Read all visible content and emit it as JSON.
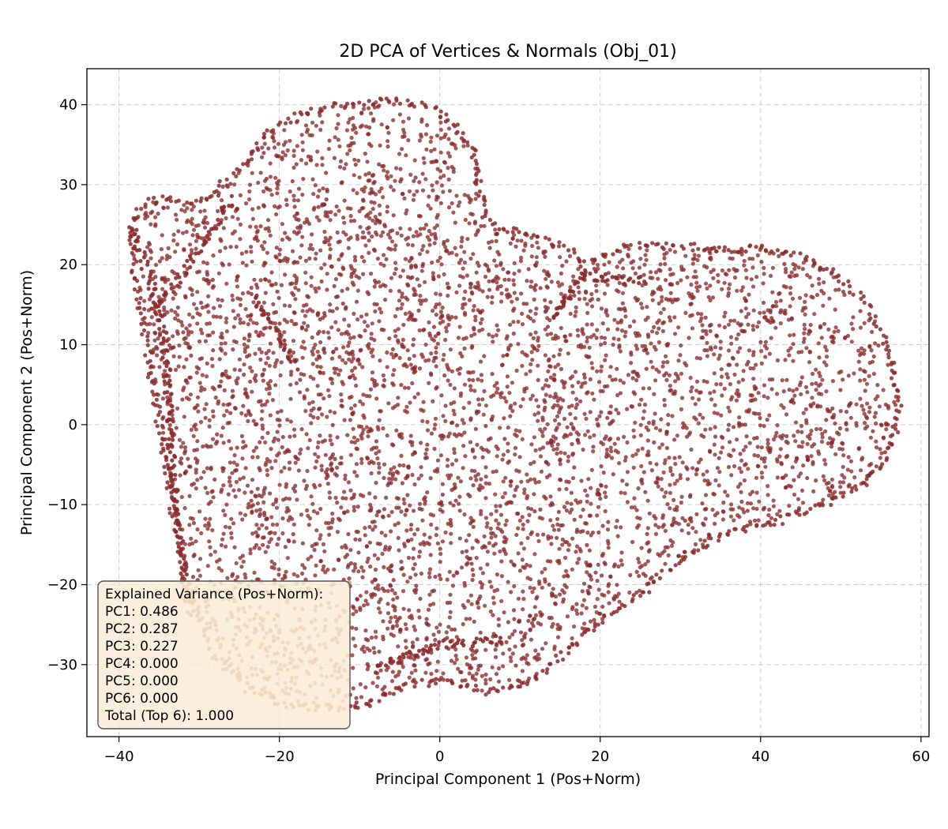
{
  "chart_data": {
    "type": "scatter",
    "title": "2D PCA of Vertices & Normals (Obj_01)",
    "xlabel": "Principal Component 1 (Pos+Norm)",
    "ylabel": "Principal Component 2 (Pos+Norm)",
    "xlim": [
      -44,
      61
    ],
    "ylim": [
      -39,
      44.5
    ],
    "xticks": [
      -40,
      -20,
      0,
      20,
      40,
      60
    ],
    "yticks": [
      -30,
      -20,
      -10,
      0,
      10,
      20,
      30,
      40
    ],
    "grid": true,
    "point_color": "#8b2a2a",
    "point_color_light": "#d0a48a",
    "boundary": [
      [
        -38.5,
        24.5
      ],
      [
        -37,
        27.5
      ],
      [
        -34,
        28.5
      ],
      [
        -31,
        27.5
      ],
      [
        -28,
        29
      ],
      [
        -25,
        32
      ],
      [
        -22,
        36
      ],
      [
        -19,
        38.2
      ],
      [
        -15,
        39.5
      ],
      [
        -10,
        40.2
      ],
      [
        -5,
        40.5
      ],
      [
        -1,
        39.5
      ],
      [
        2,
        37.5
      ],
      [
        4,
        35
      ],
      [
        4.6,
        32
      ],
      [
        5,
        29
      ],
      [
        5.5,
        26
      ],
      [
        8,
        24.5
      ],
      [
        12,
        23.5
      ],
      [
        16,
        22
      ],
      [
        18,
        20
      ],
      [
        21,
        21.5
      ],
      [
        25,
        22.5
      ],
      [
        30,
        22.3
      ],
      [
        35,
        22
      ],
      [
        40,
        22
      ],
      [
        45,
        21
      ],
      [
        49,
        19
      ],
      [
        52.5,
        16
      ],
      [
        55,
        12
      ],
      [
        56.5,
        7
      ],
      [
        57.3,
        3
      ],
      [
        56.8,
        -1
      ],
      [
        55.5,
        -4.5
      ],
      [
        53,
        -7.5
      ],
      [
        49,
        -9.5
      ],
      [
        45,
        -11
      ],
      [
        41,
        -12.5
      ],
      [
        36,
        -13.5
      ],
      [
        32,
        -15.5
      ],
      [
        28,
        -18.5
      ],
      [
        24,
        -22
      ],
      [
        19,
        -25.5
      ],
      [
        15,
        -29
      ],
      [
        11,
        -32.5
      ],
      [
        6,
        -33.5
      ],
      [
        1,
        -32
      ],
      [
        -4,
        -32.5
      ],
      [
        -9,
        -35
      ],
      [
        -14,
        -35.5
      ],
      [
        -19,
        -35
      ],
      [
        -24,
        -33
      ],
      [
        -28,
        -29
      ],
      [
        -31,
        -22
      ],
      [
        -33,
        -12
      ],
      [
        -35,
        0
      ],
      [
        -36.5,
        10
      ],
      [
        -38,
        18
      ]
    ],
    "ridges": [
      [
        [
          -38.5,
          24.5
        ],
        [
          -36,
          18
        ],
        [
          -34.5,
          12
        ],
        [
          -34,
          5
        ],
        [
          -33.5,
          -3
        ],
        [
          -33,
          -10
        ],
        [
          -32,
          -18
        ],
        [
          -31,
          -24
        ]
      ],
      [
        [
          -36,
          14
        ],
        [
          -32,
          19
        ],
        [
          -28,
          24.5
        ],
        [
          -26,
          28.5
        ]
      ],
      [
        [
          -23,
          16
        ],
        [
          -20,
          11
        ],
        [
          -18,
          7
        ]
      ],
      [
        [
          14,
          13.5
        ],
        [
          16,
          16
        ],
        [
          18,
          19
        ],
        [
          22,
          18
        ],
        [
          26,
          18
        ]
      ],
      [
        [
          -8,
          -30.5
        ],
        [
          -4,
          -29
        ],
        [
          0,
          -27.5
        ],
        [
          4,
          -27.2
        ],
        [
          8,
          -26.8
        ]
      ]
    ],
    "point_count": 5200,
    "annotation": {
      "lines": [
        "Explained Variance (Pos+Norm):",
        "PC1: 0.486",
        "PC2: 0.287",
        "PC3: 0.227",
        "PC4: 0.000",
        "PC5: 0.000",
        "PC6: 0.000",
        "Total (Top 6): 1.000"
      ],
      "placement": "lower-left",
      "background": "#f9e8cf"
    }
  }
}
